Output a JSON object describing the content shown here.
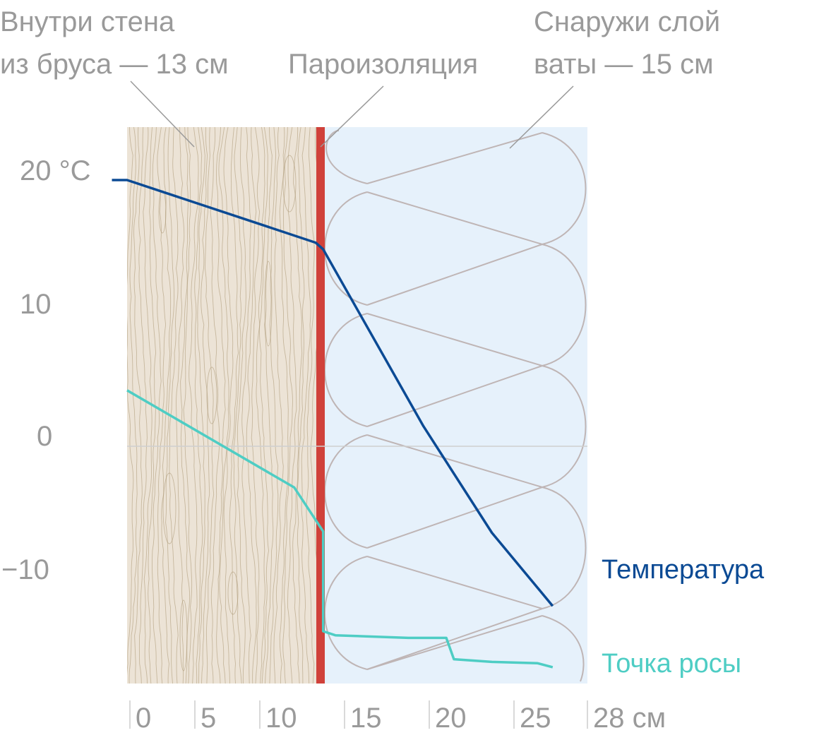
{
  "labels": {
    "inside_line1": "Внутри стена",
    "inside_line2": "из бруса — 13 см",
    "vapor": "Пароизоляция",
    "outside_line1": "Снаружи слой",
    "outside_line2": "ваты — 15 см"
  },
  "colors": {
    "wood": "#ece3d6",
    "wood_grain": "#a89370",
    "vapor_barrier": "#d0413a",
    "insulation": "#e6f1fb",
    "insulation_outline": "#bfb5b5",
    "temperature": "#0b4a94",
    "dew_point": "#4ecdc4",
    "axis_text": "#9a9a9a",
    "zero_line": "#cfcfcf"
  },
  "chart_data": {
    "type": "line",
    "x_unit": "см",
    "y_unit": "°C",
    "xlim": [
      -1,
      28
    ],
    "ylim": [
      -18,
      24
    ],
    "x_ticks": [
      "0",
      "5",
      "10",
      "15",
      "20",
      "25",
      "28 см"
    ],
    "y_ticks": [
      "20 °C",
      "10",
      "0",
      "−10"
    ],
    "layers": [
      {
        "name": "Внутри стена из бруса — 13 см",
        "from": -1,
        "to": 12.7
      },
      {
        "name": "Пароизоляция",
        "from": 12.7,
        "to": 13.3
      },
      {
        "name": "Снаружи слой ваты — 15 см",
        "from": 13.3,
        "to": 28
      }
    ],
    "series": [
      {
        "name": "Температура",
        "x": [
          -1,
          0,
          12.4,
          12.9,
          19.5,
          24,
          28
        ],
        "y": [
          20,
          20,
          15.3,
          14.8,
          1.5,
          -6.5,
          -12
        ]
      },
      {
        "name": "Точка росы",
        "x": [
          0,
          11,
          12.9,
          12.9,
          13.7,
          18.5,
          21,
          21.5,
          24,
          27,
          28
        ],
        "y": [
          4.2,
          -3.1,
          -6.4,
          -13.9,
          -14.2,
          -14.4,
          -14.4,
          -16,
          -16.2,
          -16.3,
          -16.6
        ]
      }
    ]
  }
}
